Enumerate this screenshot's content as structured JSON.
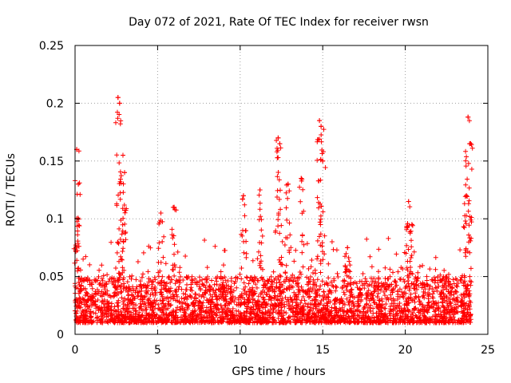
{
  "chart_data": {
    "type": "scatter",
    "title": "Day 072 of 2021, Rate Of TEC Index for receiver rwsn",
    "xlabel": "GPS time / hours",
    "ylabel": "ROTI / TECUs",
    "xlim": [
      0,
      25
    ],
    "ylim": [
      0,
      0.25
    ],
    "xticks": [
      0,
      5,
      10,
      15,
      20,
      25
    ],
    "xtick_labels": [
      "0",
      "5",
      "10",
      "15",
      "20",
      "25"
    ],
    "yticks": [
      0,
      0.05,
      0.1,
      0.15,
      0.2,
      0.25
    ],
    "ytick_labels": [
      "0",
      "0.05",
      "0.1",
      "0.15",
      "0.2",
      "0.25"
    ],
    "grid": true,
    "marker": "+",
    "marker_color": "#ff0000",
    "series": [
      {
        "points_description": "dense ROTI samples every ~30 s over 0-24 h; baseline 0.01-0.05 TECU/s",
        "baseline_range": [
          0.01,
          0.05
        ],
        "peaks": [
          {
            "x": 0.1,
            "y": 0.16
          },
          {
            "x": 0.2,
            "y": 0.13
          },
          {
            "x": 2.6,
            "y": 0.205
          },
          {
            "x": 2.7,
            "y": 0.2
          },
          {
            "x": 2.9,
            "y": 0.155
          },
          {
            "x": 3.0,
            "y": 0.14
          },
          {
            "x": 5.2,
            "y": 0.105
          },
          {
            "x": 6.0,
            "y": 0.11
          },
          {
            "x": 10.2,
            "y": 0.12
          },
          {
            "x": 11.2,
            "y": 0.125
          },
          {
            "x": 12.3,
            "y": 0.17
          },
          {
            "x": 12.4,
            "y": 0.165
          },
          {
            "x": 12.9,
            "y": 0.13
          },
          {
            "x": 13.7,
            "y": 0.135
          },
          {
            "x": 14.8,
            "y": 0.185
          },
          {
            "x": 14.9,
            "y": 0.18
          },
          {
            "x": 15.0,
            "y": 0.15
          },
          {
            "x": 16.5,
            "y": 0.075
          },
          {
            "x": 20.2,
            "y": 0.115
          },
          {
            "x": 20.4,
            "y": 0.095
          },
          {
            "x": 23.8,
            "y": 0.188
          },
          {
            "x": 23.9,
            "y": 0.165
          },
          {
            "x": 23.7,
            "y": 0.12
          }
        ]
      }
    ]
  }
}
